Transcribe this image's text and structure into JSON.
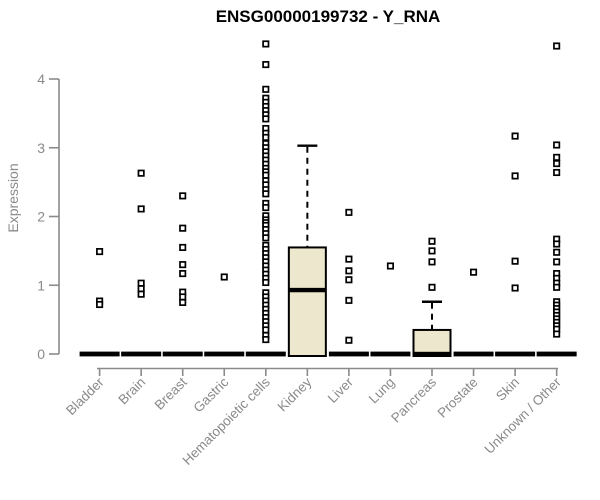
{
  "chart_data": {
    "type": "boxplot",
    "title": "ENSG00000199732 - Y_RNA",
    "ylabel": "Expression",
    "xlabel": "",
    "yticks": [
      0,
      1,
      2,
      3,
      4
    ],
    "ylim": [
      0,
      4.6
    ],
    "grid": false,
    "legend": "none",
    "categories": [
      "Bladder",
      "Brain",
      "Breast",
      "Gastric",
      "Hematopoietic cells",
      "Kidney",
      "Liver",
      "Lung",
      "Pancreas",
      "Prostate",
      "Skin",
      "Unknown / Other"
    ],
    "boxes": [
      {
        "category": "Bladder",
        "q1": 0,
        "median": 0,
        "q3": 0,
        "whisker_low": 0,
        "whisker_high": 0,
        "outliers": [
          1.49,
          0.77,
          0.72
        ]
      },
      {
        "category": "Brain",
        "q1": 0,
        "median": 0,
        "q3": 0,
        "whisker_low": 0,
        "whisker_high": 0,
        "outliers": [
          2.63,
          2.11,
          1.03,
          0.95,
          0.87
        ]
      },
      {
        "category": "Breast",
        "q1": 0,
        "median": 0,
        "q3": 0,
        "whisker_low": 0,
        "whisker_high": 0,
        "outliers": [
          2.3,
          1.83,
          1.55,
          1.3,
          1.17,
          0.9,
          0.83,
          0.75
        ]
      },
      {
        "category": "Gastric",
        "q1": 0,
        "median": 0,
        "q3": 0,
        "whisker_low": 0,
        "whisker_high": 0,
        "outliers": [
          1.12
        ]
      },
      {
        "category": "Hematopoietic cells",
        "q1": 0,
        "median": 0,
        "q3": 0,
        "whisker_low": 0,
        "whisker_high": 0,
        "outliers": [
          4.51,
          4.21,
          3.85,
          3.72,
          3.66,
          3.6,
          3.54,
          3.48,
          3.42,
          3.28,
          3.21,
          3.15,
          3.06,
          3.0,
          2.94,
          2.88,
          2.82,
          2.76,
          2.7,
          2.65,
          2.6,
          2.52,
          2.46,
          2.39,
          2.33,
          2.19,
          2.13,
          2.01,
          1.95,
          1.91,
          1.87,
          1.81,
          1.75,
          1.69,
          1.58,
          1.52,
          1.46,
          1.4,
          1.34,
          1.28,
          1.22,
          1.16,
          1.1,
          1.04,
          0.89,
          0.83,
          0.77,
          0.71,
          0.65,
          0.59,
          0.53,
          0.47,
          0.41,
          0.35,
          0.27,
          0.21
        ]
      },
      {
        "category": "Kidney",
        "q1": 0,
        "median": 0.93,
        "q3": 1.55,
        "whisker_low": 0,
        "whisker_high": 3.03,
        "outliers": []
      },
      {
        "category": "Liver",
        "q1": 0,
        "median": 0,
        "q3": 0,
        "whisker_low": 0,
        "whisker_high": 0,
        "outliers": [
          2.06,
          1.38,
          1.21,
          1.08,
          0.78,
          0.2
        ]
      },
      {
        "category": "Lung",
        "q1": 0,
        "median": 0,
        "q3": 0,
        "whisker_low": 0,
        "whisker_high": 0,
        "outliers": [
          1.28
        ]
      },
      {
        "category": "Pancreas",
        "q1": 0,
        "median": 0,
        "q3": 0.35,
        "whisker_low": 0,
        "whisker_high": 0.76,
        "outliers": [
          1.64,
          1.5,
          1.34,
          0.97
        ]
      },
      {
        "category": "Prostate",
        "q1": 0,
        "median": 0,
        "q3": 0,
        "whisker_low": 0,
        "whisker_high": 0,
        "outliers": [
          1.19
        ]
      },
      {
        "category": "Skin",
        "q1": 0,
        "median": 0,
        "q3": 0,
        "whisker_low": 0,
        "whisker_high": 0,
        "outliers": [
          3.17,
          2.59,
          1.35,
          0.96
        ]
      },
      {
        "category": "Unknown / Other",
        "q1": 0,
        "median": 0,
        "q3": 0,
        "whisker_low": 0,
        "whisker_high": 0,
        "outliers": [
          4.48,
          3.04,
          2.86,
          2.77,
          2.64,
          1.67,
          1.6,
          1.48,
          1.34,
          1.17,
          1.1,
          1.03,
          0.97,
          0.76,
          0.71,
          0.66,
          0.61,
          0.56,
          0.51,
          0.46,
          0.41,
          0.36,
          0.29
        ]
      }
    ],
    "colors": {
      "box_fill": "#EDE8CD",
      "box_stroke": "#000000",
      "median": "#000000",
      "outlier_stroke": "#000000",
      "outlier_fill": "#ffffff",
      "axis": "#8a8a8a",
      "tick_label": "#8a8a8a",
      "title": "#000000",
      "background": "#ffffff"
    }
  }
}
